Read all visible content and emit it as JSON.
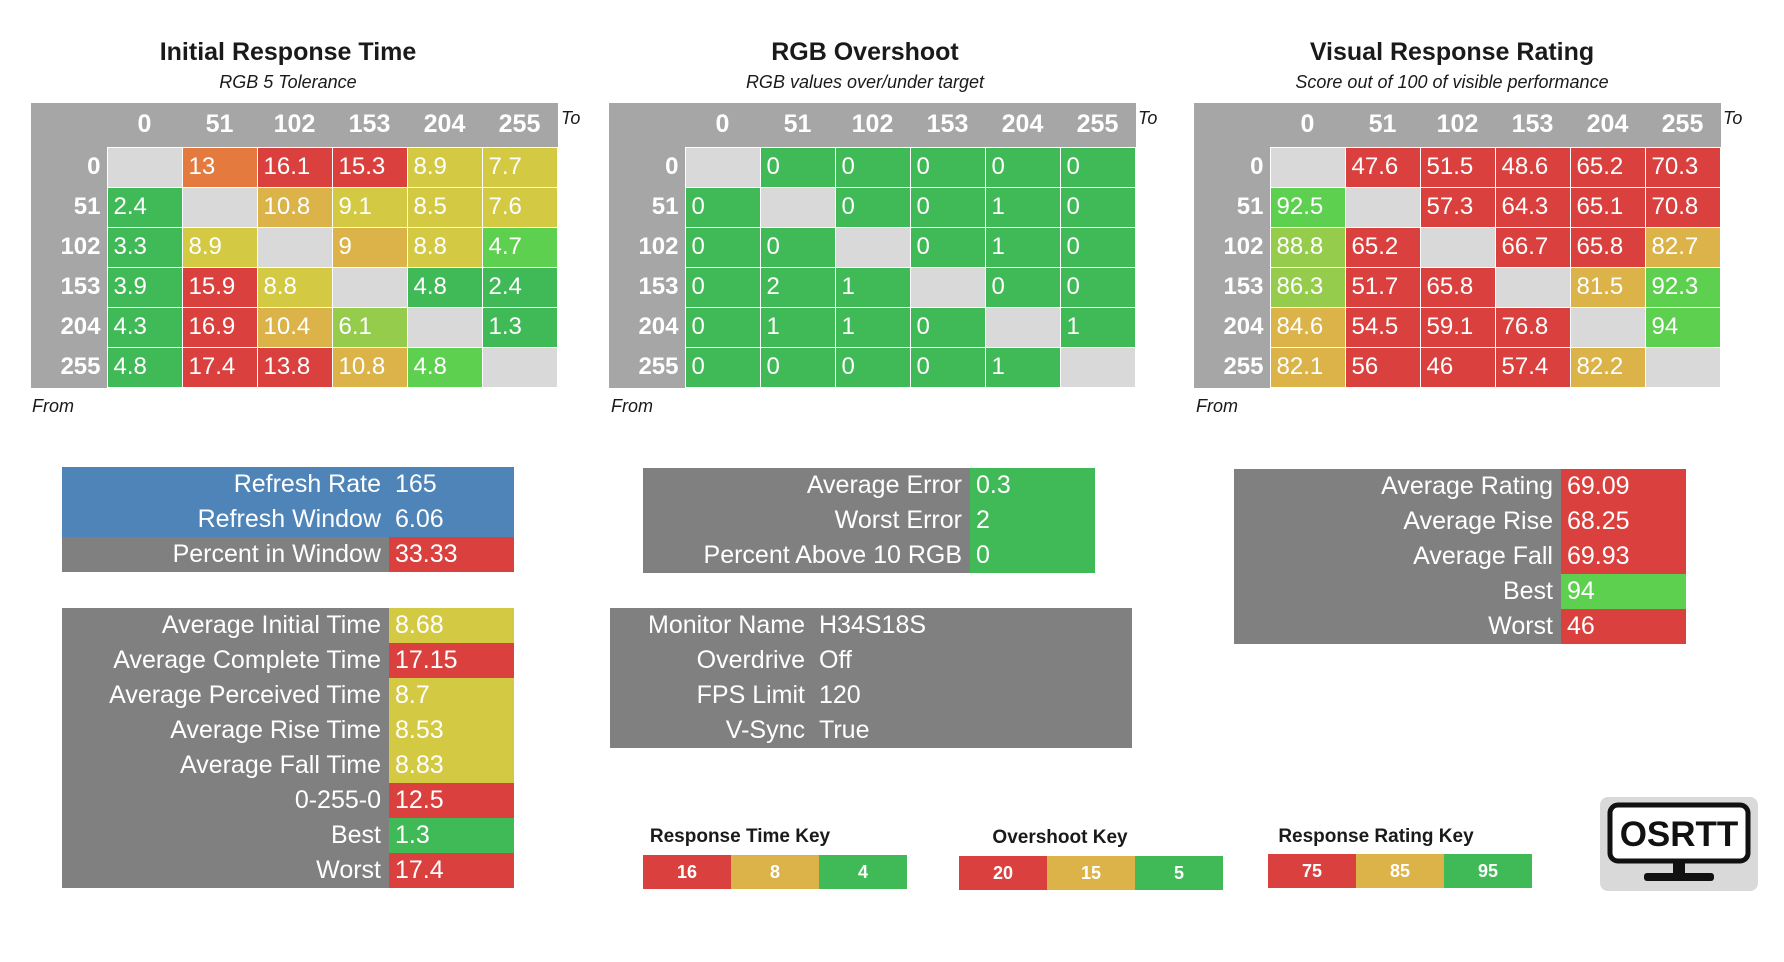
{
  "colors": {
    "red": "#d9403e",
    "orange": "#e47a3d",
    "amber": "#dcb349",
    "yellow": "#d4c943",
    "lightgreen": "#5ed04f",
    "yellowgreen": "#96cc4c",
    "green": "#3fba57",
    "gray": "#808080",
    "blue": "#4e84b7",
    "diag": "#d9d9d9"
  },
  "columns": [
    "0",
    "51",
    "102",
    "153",
    "204",
    "255"
  ],
  "rows": [
    "0",
    "51",
    "102",
    "153",
    "204",
    "255"
  ],
  "to_label": "To",
  "from_label": "From",
  "panels": [
    {
      "title": "Initial Response Time",
      "subtitle": "RGB 5 Tolerance",
      "cells": [
        [
          null,
          "13",
          "16.1",
          "15.3",
          "8.9",
          "7.7"
        ],
        [
          "2.4",
          null,
          "10.8",
          "9.1",
          "8.5",
          "7.6"
        ],
        [
          "3.3",
          "8.9",
          null,
          "9",
          "8.8",
          "4.7"
        ],
        [
          "3.9",
          "15.9",
          "8.8",
          null,
          "4.8",
          "2.4"
        ],
        [
          "4.3",
          "16.9",
          "10.4",
          "6.1",
          null,
          "1.3"
        ],
        [
          "4.8",
          "17.4",
          "13.8",
          "10.8",
          "4.8",
          null
        ]
      ],
      "cell_colors": [
        [
          null,
          "orange",
          "red",
          "red",
          "yellow",
          "yellow"
        ],
        [
          "green",
          null,
          "amber",
          "yellow",
          "yellow",
          "yellow"
        ],
        [
          "green",
          "yellow",
          null,
          "amber",
          "yellow",
          "lightgreen"
        ],
        [
          "green",
          "red",
          "yellow",
          null,
          "green",
          "green"
        ],
        [
          "green",
          "red",
          "amber",
          "yellowgreen",
          null,
          "green"
        ],
        [
          "green",
          "red",
          "red",
          "amber",
          "lightgreen",
          null
        ]
      ]
    },
    {
      "title": "RGB Overshoot",
      "subtitle": "RGB values over/under target",
      "cells": [
        [
          null,
          "0",
          "0",
          "0",
          "0",
          "0"
        ],
        [
          "0",
          null,
          "0",
          "0",
          "1",
          "0"
        ],
        [
          "0",
          "0",
          null,
          "0",
          "1",
          "0"
        ],
        [
          "0",
          "2",
          "1",
          null,
          "0",
          "0"
        ],
        [
          "0",
          "1",
          "1",
          "0",
          null,
          "1"
        ],
        [
          "0",
          "0",
          "0",
          "0",
          "1",
          null
        ]
      ],
      "cell_colors": [
        [
          null,
          "green",
          "green",
          "green",
          "green",
          "green"
        ],
        [
          "green",
          null,
          "green",
          "green",
          "green",
          "green"
        ],
        [
          "green",
          "green",
          null,
          "green",
          "green",
          "green"
        ],
        [
          "green",
          "green",
          "green",
          null,
          "green",
          "green"
        ],
        [
          "green",
          "green",
          "green",
          "green",
          null,
          "green"
        ],
        [
          "green",
          "green",
          "green",
          "green",
          "green",
          null
        ]
      ]
    },
    {
      "title": "Visual Response Rating",
      "subtitle": "Score out of 100 of visible performance",
      "cells": [
        [
          null,
          "47.6",
          "51.5",
          "48.6",
          "65.2",
          "70.3"
        ],
        [
          "92.5",
          null,
          "57.3",
          "64.3",
          "65.1",
          "70.8"
        ],
        [
          "88.8",
          "65.2",
          null,
          "66.7",
          "65.8",
          "82.7"
        ],
        [
          "86.3",
          "51.7",
          "65.8",
          null,
          "81.5",
          "92.3"
        ],
        [
          "84.6",
          "54.5",
          "59.1",
          "76.8",
          null,
          "94"
        ],
        [
          "82.1",
          "56",
          "46",
          "57.4",
          "82.2",
          null
        ]
      ],
      "cell_colors": [
        [
          null,
          "red",
          "red",
          "red",
          "red",
          "red"
        ],
        [
          "lightgreen",
          null,
          "red",
          "red",
          "red",
          "red"
        ],
        [
          "yellowgreen",
          "red",
          null,
          "red",
          "red",
          "amber"
        ],
        [
          "yellowgreen",
          "red",
          "red",
          null,
          "amber",
          "lightgreen"
        ],
        [
          "amber",
          "red",
          "red",
          "red",
          null,
          "lightgreen"
        ],
        [
          "amber",
          "red",
          "red",
          "red",
          "amber",
          null
        ]
      ]
    }
  ],
  "refresh_box": [
    {
      "label": "Refresh Rate",
      "value": "165",
      "bg": "blue",
      "vbg": "blue"
    },
    {
      "label": "Refresh Window",
      "value": "6.06",
      "bg": "blue",
      "vbg": "blue"
    },
    {
      "label": "Percent in Window",
      "value": "33.33",
      "bg": "gray",
      "vbg": "red"
    }
  ],
  "time_box": [
    {
      "label": "Average Initial Time",
      "value": "8.68",
      "vbg": "yellow"
    },
    {
      "label": "Average Complete Time",
      "value": "17.15",
      "vbg": "red"
    },
    {
      "label": "Average Perceived Time",
      "value": "8.7",
      "vbg": "yellow"
    },
    {
      "label": "Average Rise Time",
      "value": "8.53",
      "vbg": "yellow"
    },
    {
      "label": "Average Fall Time",
      "value": "8.83",
      "vbg": "yellow"
    },
    {
      "label": "0-255-0",
      "value": "12.5",
      "vbg": "red"
    },
    {
      "label": "Best",
      "value": "1.3",
      "vbg": "green"
    },
    {
      "label": "Worst",
      "value": "17.4",
      "vbg": "red"
    }
  ],
  "error_box": [
    {
      "label": "Average Error",
      "value": "0.3",
      "vbg": "green"
    },
    {
      "label": "Worst Error",
      "value": "2",
      "vbg": "green"
    },
    {
      "label": "Percent Above 10 RGB",
      "value": "0",
      "vbg": "green"
    }
  ],
  "monitor_box": [
    {
      "label": "Monitor Name",
      "value": "H34S18S"
    },
    {
      "label": "Overdrive",
      "value": "Off"
    },
    {
      "label": "FPS Limit",
      "value": "120"
    },
    {
      "label": "V-Sync",
      "value": "True"
    }
  ],
  "rating_box": [
    {
      "label": "Average Rating",
      "value": "69.09",
      "vbg": "red"
    },
    {
      "label": "Average Rise",
      "value": "68.25",
      "vbg": "red"
    },
    {
      "label": "Average Fall",
      "value": "69.93",
      "vbg": "red"
    },
    {
      "label": "Best",
      "value": "94",
      "vbg": "lightgreen"
    },
    {
      "label": "Worst",
      "value": "46",
      "vbg": "red"
    }
  ],
  "keys": [
    {
      "title": "Response Time Key",
      "values": [
        "16",
        "8",
        "4"
      ],
      "colors": [
        "red",
        "amber",
        "green"
      ]
    },
    {
      "title": "Overshoot Key",
      "values": [
        "20",
        "15",
        "5"
      ],
      "colors": [
        "red",
        "amber",
        "green"
      ]
    },
    {
      "title": "Response Rating Key",
      "values": [
        "75",
        "85",
        "95"
      ],
      "colors": [
        "red",
        "amber",
        "green"
      ]
    }
  ],
  "logo_text": "OSRTT"
}
